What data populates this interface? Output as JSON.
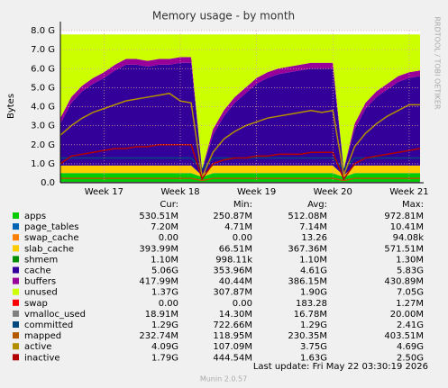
{
  "chart_data": {
    "type": "area",
    "title": "Memory usage - by month",
    "y_label": "Bytes",
    "side_note": "RRDTOOL / TOBI OETIKER",
    "categories": [
      null,
      null,
      null,
      null,
      "Week 17",
      null,
      null,
      null,
      null,
      null,
      null,
      "Week 18",
      null,
      null,
      null,
      null,
      null,
      null,
      "Week 19",
      null,
      null,
      null,
      null,
      null,
      null,
      "Week 20",
      null,
      null,
      null,
      null,
      null,
      null,
      "Week 21",
      null
    ],
    "ylim": [
      0,
      8000000000.0
    ],
    "yticks": [
      {
        "value": 0,
        "label": "0.0"
      },
      {
        "value": 1000000000.0,
        "label": "1.0 G"
      },
      {
        "value": 2000000000.0,
        "label": "2.0 G"
      },
      {
        "value": 3000000000.0,
        "label": "3.0 G"
      },
      {
        "value": 4000000000.0,
        "label": "4.0 G"
      },
      {
        "value": 5000000000.0,
        "label": "5.0 G"
      },
      {
        "value": 6000000000.0,
        "label": "6.0 G"
      },
      {
        "value": 7000000000.0,
        "label": "7.0 G"
      },
      {
        "value": 8000000000.0,
        "label": "8.0 G"
      }
    ],
    "grid": true,
    "series": [
      {
        "name": "apps",
        "color": "#00CC00",
        "style": "area",
        "values": [
          500000000.0,
          500000000.0,
          500000000.0,
          500000000.0,
          500000000.0,
          500000000.0,
          500000000.0,
          500000000.0,
          500000000.0,
          500000000.0,
          500000000.0,
          500000000.0,
          500000000.0,
          300000000.0,
          500000000.0,
          500000000.0,
          500000000.0,
          500000000.0,
          500000000.0,
          500000000.0,
          500000000.0,
          500000000.0,
          500000000.0,
          500000000.0,
          500000000.0,
          500000000.0,
          300000000.0,
          500000000.0,
          500000000.0,
          500000000.0,
          500000000.0,
          500000000.0,
          500000000.0,
          500000000.0
        ]
      },
      {
        "name": "page_tables",
        "color": "#0066B3",
        "style": "area",
        "values": [
          7000000.0,
          7000000.0,
          7000000.0,
          7000000.0,
          7000000.0,
          7000000.0,
          7000000.0,
          7000000.0,
          7000000.0,
          7000000.0,
          7000000.0,
          7000000.0,
          7000000.0,
          7000000.0,
          7000000.0,
          7000000.0,
          7000000.0,
          7000000.0,
          7000000.0,
          7000000.0,
          7000000.0,
          7000000.0,
          7000000.0,
          7000000.0,
          7000000.0,
          7000000.0,
          7000000.0,
          7000000.0,
          7000000.0,
          7000000.0,
          7000000.0,
          7000000.0,
          7000000.0,
          7000000.0
        ]
      },
      {
        "name": "swap_cache",
        "color": "#FF8000",
        "style": "area",
        "values": [
          0,
          0,
          0,
          0,
          0,
          0,
          0,
          0,
          0,
          0,
          0,
          0,
          0,
          0,
          0,
          0,
          0,
          0,
          0,
          0,
          0,
          0,
          0,
          0,
          0,
          0,
          0,
          0,
          0,
          0,
          0,
          0,
          0,
          0
        ]
      },
      {
        "name": "slab_cache",
        "color": "#FFCC00",
        "style": "area",
        "values": [
          400000000.0,
          400000000.0,
          400000000.0,
          400000000.0,
          400000000.0,
          400000000.0,
          400000000.0,
          400000000.0,
          400000000.0,
          400000000.0,
          400000000.0,
          400000000.0,
          400000000.0,
          70000000.0,
          400000000.0,
          400000000.0,
          400000000.0,
          400000000.0,
          400000000.0,
          400000000.0,
          400000000.0,
          400000000.0,
          400000000.0,
          400000000.0,
          400000000.0,
          400000000.0,
          70000000.0,
          400000000.0,
          400000000.0,
          400000000.0,
          400000000.0,
          400000000.0,
          400000000.0,
          400000000.0
        ]
      },
      {
        "name": "shmem",
        "color": "#008F00",
        "style": "area",
        "values": [
          1000000.0,
          1000000.0,
          1000000.0,
          1000000.0,
          1000000.0,
          1000000.0,
          1000000.0,
          1000000.0,
          1000000.0,
          1000000.0,
          1000000.0,
          1000000.0,
          1000000.0,
          1000000.0,
          1000000.0,
          1000000.0,
          1000000.0,
          1000000.0,
          1000000.0,
          1000000.0,
          1000000.0,
          1000000.0,
          1000000.0,
          1000000.0,
          1000000.0,
          1000000.0,
          1000000.0,
          1000000.0,
          1000000.0,
          1000000.0,
          1000000.0,
          1000000.0,
          1000000.0,
          1000000.0
        ]
      },
      {
        "name": "cache",
        "color": "#330099",
        "style": "area",
        "values": [
          2200000000.0,
          3300000000.0,
          3900000000.0,
          4300000000.0,
          4600000000.0,
          5000000000.0,
          5300000000.0,
          5300000000.0,
          5200000000.0,
          5300000000.0,
          5300000000.0,
          5400000000.0,
          5400000000.0,
          300000000.0,
          1600000000.0,
          2600000000.0,
          3300000000.0,
          3800000000.0,
          4300000000.0,
          4600000000.0,
          4800000000.0,
          4900000000.0,
          5000000000.0,
          5100000000.0,
          5100000000.0,
          5100000000.0,
          300000000.0,
          1900000000.0,
          3000000000.0,
          3600000000.0,
          4000000000.0,
          4400000000.0,
          4600000000.0,
          4700000000.0
        ]
      },
      {
        "name": "buffers",
        "color": "#990099",
        "style": "area",
        "values": [
          300000000.0,
          300000000.0,
          300000000.0,
          300000000.0,
          300000000.0,
          300000000.0,
          300000000.0,
          300000000.0,
          300000000.0,
          300000000.0,
          300000000.0,
          300000000.0,
          300000000.0,
          40000000.0,
          300000000.0,
          300000000.0,
          300000000.0,
          300000000.0,
          300000000.0,
          300000000.0,
          300000000.0,
          300000000.0,
          300000000.0,
          300000000.0,
          300000000.0,
          300000000.0,
          40000000.0,
          300000000.0,
          300000000.0,
          300000000.0,
          300000000.0,
          300000000.0,
          300000000.0,
          300000000.0
        ]
      },
      {
        "name": "unused",
        "color": "#CCFF00",
        "style": "area",
        "values": [
          4390000000.0,
          3290000000.0,
          2690000000.0,
          2290000000.0,
          1990000000.0,
          1590000000.0,
          1290000000.0,
          1290000000.0,
          1390000000.0,
          1290000000.0,
          1290000000.0,
          1190000000.0,
          1190000000.0,
          7080000000.0,
          4990000000.0,
          3990000000.0,
          3290000000.0,
          2790000000.0,
          2290000000.0,
          1990000000.0,
          1790000000.0,
          1690000000.0,
          1590000000.0,
          1490000000.0,
          1490000000.0,
          1490000000.0,
          7080000000.0,
          4690000000.0,
          3590000000.0,
          2990000000.0,
          2590000000.0,
          2190000000.0,
          1990000000.0,
          1890000000.0
        ]
      },
      {
        "name": "swap",
        "color": "#FF0000",
        "style": "area",
        "values": [
          0,
          0,
          0,
          0,
          0,
          0,
          0,
          0,
          0,
          0,
          0,
          0,
          0,
          0,
          0,
          0,
          0,
          0,
          0,
          0,
          0,
          0,
          0,
          0,
          0,
          0,
          0,
          0,
          0,
          0,
          0,
          0,
          0,
          0
        ]
      },
      {
        "name": "vmalloc_used",
        "color": "#808080",
        "style": "line",
        "values": [
          19000000.0,
          19000000.0,
          19000000.0,
          19000000.0,
          19000000.0,
          19000000.0,
          19000000.0,
          19000000.0,
          19000000.0,
          19000000.0,
          19000000.0,
          19000000.0,
          19000000.0,
          14000000.0,
          19000000.0,
          19000000.0,
          19000000.0,
          19000000.0,
          19000000.0,
          19000000.0,
          19000000.0,
          19000000.0,
          19000000.0,
          19000000.0,
          19000000.0,
          19000000.0,
          14000000.0,
          19000000.0,
          19000000.0,
          19000000.0,
          19000000.0,
          19000000.0,
          19000000.0,
          19000000.0
        ]
      },
      {
        "name": "committed",
        "color": "#00487D",
        "style": "line",
        "values": [
          1300000000.0,
          1300000000.0,
          1300000000.0,
          1300000000.0,
          1300000000.0,
          1300000000.0,
          1300000000.0,
          1300000000.0,
          1300000000.0,
          1300000000.0,
          1300000000.0,
          1300000000.0,
          1300000000.0,
          720000000.0,
          1300000000.0,
          1300000000.0,
          1300000000.0,
          1300000000.0,
          1300000000.0,
          1300000000.0,
          1300000000.0,
          1300000000.0,
          1300000000.0,
          1300000000.0,
          1300000000.0,
          1300000000.0,
          720000000.0,
          1300000000.0,
          1300000000.0,
          1300000000.0,
          1300000000.0,
          1300000000.0,
          1300000000.0,
          1300000000.0
        ]
      },
      {
        "name": "mapped",
        "color": "#B35A00",
        "style": "line",
        "values": [
          230000000.0,
          230000000.0,
          230000000.0,
          230000000.0,
          230000000.0,
          230000000.0,
          230000000.0,
          230000000.0,
          230000000.0,
          230000000.0,
          230000000.0,
          230000000.0,
          230000000.0,
          120000000.0,
          230000000.0,
          230000000.0,
          230000000.0,
          230000000.0,
          230000000.0,
          230000000.0,
          230000000.0,
          230000000.0,
          230000000.0,
          230000000.0,
          230000000.0,
          230000000.0,
          120000000.0,
          230000000.0,
          230000000.0,
          230000000.0,
          230000000.0,
          230000000.0,
          230000000.0,
          230000000.0
        ]
      },
      {
        "name": "active",
        "color": "#B38F00",
        "style": "line",
        "values": [
          2500000000.0,
          3000000000.0,
          3400000000.0,
          3700000000.0,
          3900000000.0,
          4100000000.0,
          4300000000.0,
          4400000000.0,
          4500000000.0,
          4600000000.0,
          4700000000.0,
          4300000000.0,
          4200000000.0,
          300000000.0,
          1600000000.0,
          2300000000.0,
          2700000000.0,
          3000000000.0,
          3200000000.0,
          3400000000.0,
          3500000000.0,
          3600000000.0,
          3700000000.0,
          3800000000.0,
          3700000000.0,
          3800000000.0,
          400000000.0,
          1900000000.0,
          2600000000.0,
          3100000000.0,
          3500000000.0,
          3800000000.0,
          4100000000.0,
          4100000000.0
        ]
      },
      {
        "name": "inactive",
        "color": "#B30000",
        "style": "line",
        "values": [
          1000000000.0,
          1400000000.0,
          1500000000.0,
          1600000000.0,
          1700000000.0,
          1800000000.0,
          1800000000.0,
          1900000000.0,
          1900000000.0,
          2000000000.0,
          2000000000.0,
          2000000000.0,
          2000000000.0,
          200000000.0,
          1000000000.0,
          1200000000.0,
          1300000000.0,
          1300000000.0,
          1400000000.0,
          1400000000.0,
          1500000000.0,
          1500000000.0,
          1500000000.0,
          1600000000.0,
          1600000000.0,
          1600000000.0,
          200000000.0,
          1000000000.0,
          1300000000.0,
          1400000000.0,
          1500000000.0,
          1600000000.0,
          1700000000.0,
          1800000000.0
        ]
      }
    ],
    "legend_table": {
      "columns": [
        "Cur:",
        "Min:",
        "Avg:",
        "Max:"
      ],
      "rows": [
        [
          "530.51M",
          "250.87M",
          "512.08M",
          "972.81M"
        ],
        [
          "7.20M",
          "4.71M",
          "7.14M",
          "10.41M"
        ],
        [
          "0.00",
          "0.00",
          "13.26",
          "94.08k"
        ],
        [
          "393.99M",
          "66.51M",
          "367.36M",
          "571.51M"
        ],
        [
          "1.10M",
          "998.11k",
          "1.10M",
          "1.30M"
        ],
        [
          "5.06G",
          "353.96M",
          "4.61G",
          "5.83G"
        ],
        [
          "417.99M",
          "40.44M",
          "386.15M",
          "430.89M"
        ],
        [
          "1.37G",
          "307.87M",
          "1.90G",
          "7.05G"
        ],
        [
          "0.00",
          "0.00",
          "183.28",
          "1.27M"
        ],
        [
          "18.91M",
          "14.30M",
          "16.78M",
          "20.00M"
        ],
        [
          "1.29G",
          "722.66M",
          "1.29G",
          "2.41G"
        ],
        [
          "232.74M",
          "118.95M",
          "230.35M",
          "403.51M"
        ],
        [
          "4.09G",
          "107.09M",
          "3.75G",
          "4.69G"
        ],
        [
          "1.79G",
          "444.54M",
          "1.63G",
          "2.50G"
        ]
      ]
    },
    "last_update": "Last update: Fri May 22 03:30:19 2026",
    "footer": "Munin 2.0.57"
  }
}
